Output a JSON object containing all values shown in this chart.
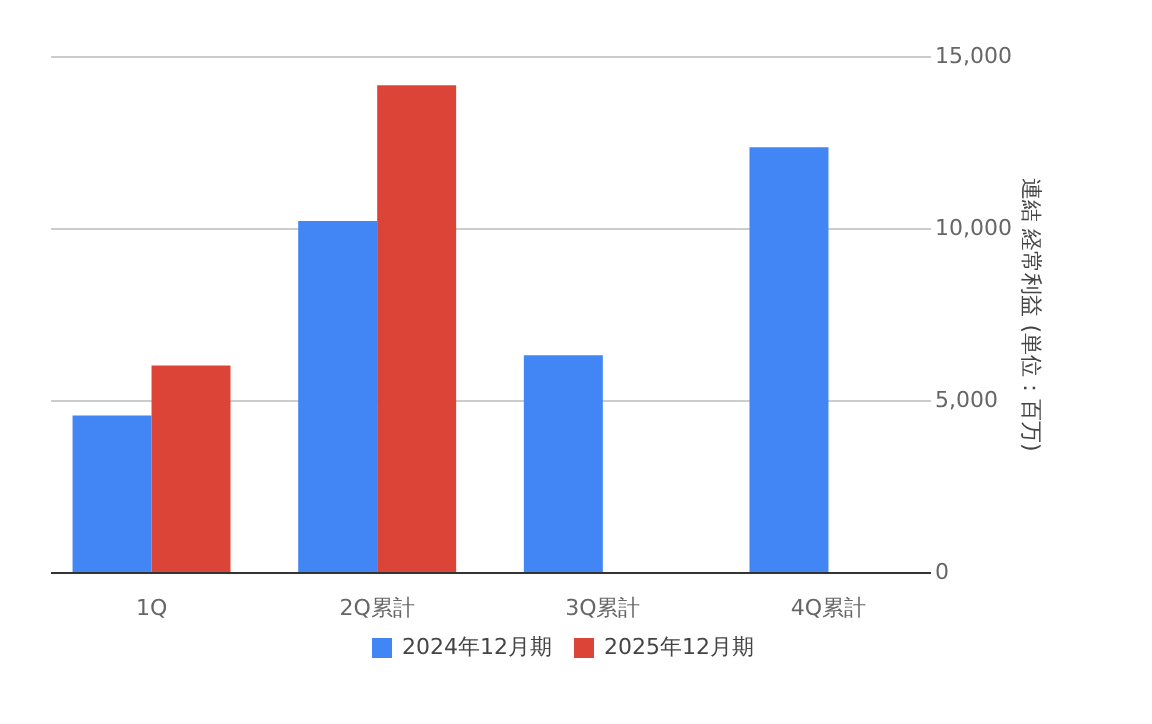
{
  "chart_data": {
    "type": "bar",
    "categories": [
      "1Q",
      "2Q累計",
      "3Q累計",
      "4Q累計"
    ],
    "series": [
      {
        "name": "2024年12月期",
        "color": "#4285f4",
        "values": [
          4550,
          10200,
          6300,
          12350
        ]
      },
      {
        "name": "2025年12月期",
        "color": "#db4437",
        "values": [
          6000,
          14150,
          null,
          null
        ]
      }
    ],
    "ylabel": "連結 経常利益 (単位：百万)",
    "ylim": [
      0,
      15000
    ],
    "yticks": [
      0,
      {
        "value": 5000,
        "label": "5,000"
      },
      {
        "value": 10000,
        "label": "10,000"
      },
      {
        "value": 15000,
        "label": "15,000"
      }
    ],
    "grid": "y",
    "legend": "bottom"
  }
}
